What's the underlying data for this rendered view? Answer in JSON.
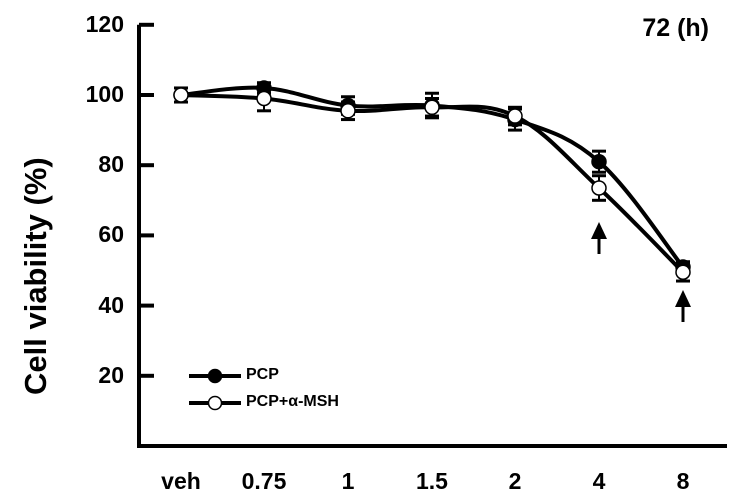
{
  "chart_data": {
    "type": "line",
    "title": "72 (h)",
    "xlabel": "",
    "ylabel": "Cell viability (%)",
    "categories": [
      "veh",
      "0.75",
      "1",
      "1.5",
      "2",
      "4",
      "8"
    ],
    "ylim": [
      0,
      120
    ],
    "yticks": [
      20,
      40,
      60,
      80,
      100,
      120
    ],
    "grid": false,
    "legend_position": "lower left",
    "series": [
      {
        "name": "PCP",
        "marker": "filled-circle",
        "values": [
          100,
          102,
          97,
          97,
          93,
          81,
          51
        ],
        "errors": [
          2,
          1.5,
          2.5,
          3.5,
          3,
          3,
          1.5
        ]
      },
      {
        "name": "PCP+α-MSH",
        "marker": "open-circle",
        "values": [
          100,
          99,
          95.5,
          96.5,
          94,
          73.5,
          49.5
        ],
        "errors": [
          2,
          3.5,
          2.5,
          2.5,
          2.5,
          3.5,
          2.5
        ]
      }
    ],
    "annotations": [
      {
        "type": "arrow-up",
        "category": "4",
        "label": ""
      },
      {
        "type": "arrow-up",
        "category": "8",
        "label": ""
      }
    ]
  },
  "colors": {
    "line": "#000000",
    "background": "#ffffff",
    "open_marker_fill": "#ffffff"
  }
}
